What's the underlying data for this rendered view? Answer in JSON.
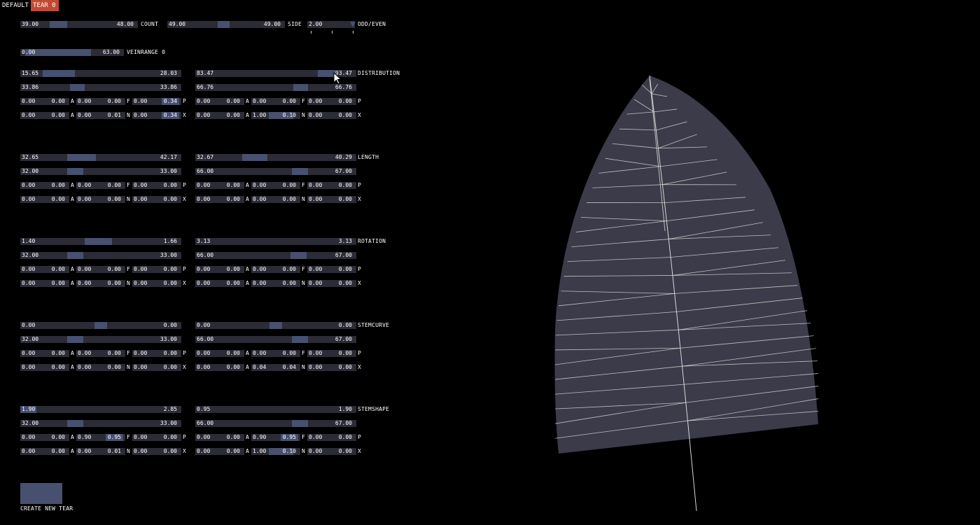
{
  "tabs": [
    {
      "label": "DEFAULT",
      "active": false
    },
    {
      "label": "TEAR 0",
      "active": true
    }
  ],
  "colors": {
    "background": "#000000",
    "slider_bg": "#2c2c36",
    "slider_fill": "#47506f",
    "active_tab": "#c24a33",
    "leaf_fill": "#3b3b4a",
    "vein": "#d8d8d8"
  },
  "top": {
    "count": {
      "min": "39.00",
      "max": "48.00",
      "label": "COUNT",
      "fill": [
        0.25,
        0.4
      ]
    },
    "side": {
      "min": "49.00",
      "max": "49.00",
      "label": "SIDE",
      "fill": [
        0.43,
        0.53
      ]
    },
    "oddeven": {
      "value": "2.00",
      "label": "ODD/EVEN"
    },
    "veinrange": {
      "min": "0.00",
      "max": "63.00",
      "label": "VEINRANGE 0",
      "fill": [
        0.05,
        0.68
      ]
    }
  },
  "groups": [
    {
      "label": "DISTRIBUTION",
      "left": {
        "main": {
          "min": "15.65",
          "max": "28.03",
          "fill": [
            0.14,
            0.34
          ]
        },
        "sub": {
          "min": "33.86",
          "max": "33.86",
          "fill": [
            0.31,
            0.4
          ]
        },
        "p": [
          "0.00",
          "0.00",
          "0.00",
          "0.00",
          "0.00",
          "0.34"
        ],
        "pf": [
          null,
          null,
          [
            0.6,
            0.95
          ]
        ],
        "x": [
          "0.00",
          "0.00",
          "0.00",
          "0.01",
          "0.00",
          "0.34"
        ],
        "xf": [
          null,
          null,
          [
            0.6,
            0.95
          ]
        ]
      },
      "right": {
        "main": {
          "min": "83.47",
          "max": "93.47",
          "fill": [
            0.76,
            0.87
          ]
        },
        "sub": {
          "min": "66.76",
          "max": "66.76",
          "fill": [
            0.61,
            0.7
          ]
        },
        "p": [
          "0.00",
          "0.00",
          "0.00",
          "0.00",
          "0.00",
          "0.00"
        ],
        "pf": [
          null,
          null,
          null
        ],
        "x": [
          "0.00",
          "0.00",
          "1.00",
          "0.10",
          "0.00",
          "0.00"
        ],
        "xf": [
          null,
          [
            0.35,
            0.85
          ],
          null
        ]
      }
    },
    {
      "label": "LENGTH",
      "left": {
        "main": {
          "min": "32.65",
          "max": "42.17",
          "fill": [
            0.29,
            0.47
          ]
        },
        "sub": {
          "min": "32.00",
          "max": "33.00",
          "fill": [
            0.29,
            0.39
          ]
        },
        "p": [
          "0.00",
          "0.00",
          "0.00",
          "0.00",
          "0.00",
          "0.00"
        ],
        "pf": [
          null,
          null,
          null
        ],
        "x": [
          "0.00",
          "0.00",
          "0.00",
          "0.00",
          "0.00",
          "0.00"
        ],
        "xf": [
          null,
          null,
          null
        ]
      },
      "right": {
        "main": {
          "min": "32.67",
          "max": "40.29",
          "fill": [
            0.29,
            0.45
          ]
        },
        "sub": {
          "min": "66.00",
          "max": "67.00",
          "fill": [
            0.6,
            0.7
          ]
        },
        "p": [
          "0.00",
          "0.00",
          "0.00",
          "0.00",
          "0.00",
          "0.00"
        ],
        "pf": [
          null,
          null,
          null
        ],
        "x": [
          "0.00",
          "0.00",
          "0.00",
          "0.00",
          "0.00",
          "0.00"
        ],
        "xf": [
          null,
          null,
          null
        ]
      }
    },
    {
      "label": "ROTATION",
      "left": {
        "main": {
          "min": "1.40",
          "max": "1.66",
          "fill": [
            0.4,
            0.57
          ]
        },
        "sub": {
          "min": "32.00",
          "max": "33.00",
          "fill": [
            0.29,
            0.39
          ]
        },
        "p": [
          "0.00",
          "0.00",
          "0.00",
          "0.00",
          "0.00",
          "0.00"
        ],
        "pf": [
          null,
          null,
          null
        ],
        "x": [
          "0.00",
          "0.00",
          "0.00",
          "0.00",
          "0.00",
          "0.00"
        ],
        "xf": [
          null,
          null,
          null
        ]
      },
      "right": {
        "main": {
          "min": "3.13",
          "max": "3.13",
          "fill": [
            0.0,
            0.0
          ]
        },
        "sub": {
          "min": "66.00",
          "max": "67.00",
          "fill": [
            0.59,
            0.69
          ]
        },
        "p": [
          "0.00",
          "0.00",
          "0.00",
          "0.00",
          "0.00",
          "0.00"
        ],
        "pf": [
          null,
          null,
          null
        ],
        "x": [
          "0.00",
          "0.00",
          "0.00",
          "0.00",
          "0.00",
          "0.00"
        ],
        "xf": [
          null,
          null,
          null
        ]
      }
    },
    {
      "label": "STEMCURVE",
      "left": {
        "main": {
          "min": "0.00",
          "max": "0.00",
          "fill": [
            0.46,
            0.54
          ]
        },
        "sub": {
          "min": "32.00",
          "max": "33.00",
          "fill": [
            0.29,
            0.39
          ]
        },
        "p": [
          "0.00",
          "0.00",
          "0.00",
          "0.00",
          "0.00",
          "0.00"
        ],
        "pf": [
          null,
          null,
          null
        ],
        "x": [
          "0.00",
          "0.00",
          "0.00",
          "0.00",
          "0.00",
          "0.00"
        ],
        "xf": [
          null,
          null,
          null
        ]
      },
      "right": {
        "main": {
          "min": "0.00",
          "max": "0.00",
          "fill": [
            0.46,
            0.54
          ]
        },
        "sub": {
          "min": "66.00",
          "max": "67.00",
          "fill": [
            0.6,
            0.7
          ]
        },
        "p": [
          "0.00",
          "0.00",
          "0.00",
          "0.00",
          "0.00",
          "0.00"
        ],
        "pf": [
          null,
          null,
          null
        ],
        "x": [
          "0.00",
          "0.00",
          "0.04",
          "0.04",
          "0.00",
          "0.00"
        ],
        "xf": [
          null,
          null,
          null
        ]
      }
    },
    {
      "label": "STEMSHAPE",
      "left": {
        "main": {
          "min": "1.90",
          "max": "2.85",
          "fill": [
            0.0,
            0.1
          ]
        },
        "sub": {
          "min": "32.00",
          "max": "33.00",
          "fill": [
            0.29,
            0.39
          ]
        },
        "p": [
          "0.00",
          "0.00",
          "0.90",
          "0.95",
          "0.00",
          "0.00"
        ],
        "pf": [
          null,
          [
            0.6,
            0.95
          ],
          null
        ],
        "x": [
          "0.00",
          "0.00",
          "0.00",
          "0.01",
          "0.00",
          "0.00"
        ],
        "xf": [
          null,
          null,
          null
        ]
      },
      "right": {
        "main": {
          "min": "0.95",
          "max": "1.90",
          "fill": [
            0.0,
            0.0
          ]
        },
        "sub": {
          "min": "66.00",
          "max": "67.00",
          "fill": [
            0.6,
            0.7
          ]
        },
        "p": [
          "0.00",
          "0.00",
          "0.90",
          "0.95",
          "0.00",
          "0.00"
        ],
        "pf": [
          null,
          [
            0.6,
            0.95
          ],
          null
        ],
        "x": [
          "0.00",
          "0.00",
          "1.00",
          "0.10",
          "0.00",
          "0.00"
        ],
        "xf": [
          null,
          [
            0.35,
            0.85
          ],
          null
        ]
      }
    }
  ],
  "letters": {
    "a": "A",
    "f": "F",
    "n": "N",
    "p": "P",
    "x": "X"
  },
  "create_button": {
    "label": "CREATE NEW TEAR"
  }
}
